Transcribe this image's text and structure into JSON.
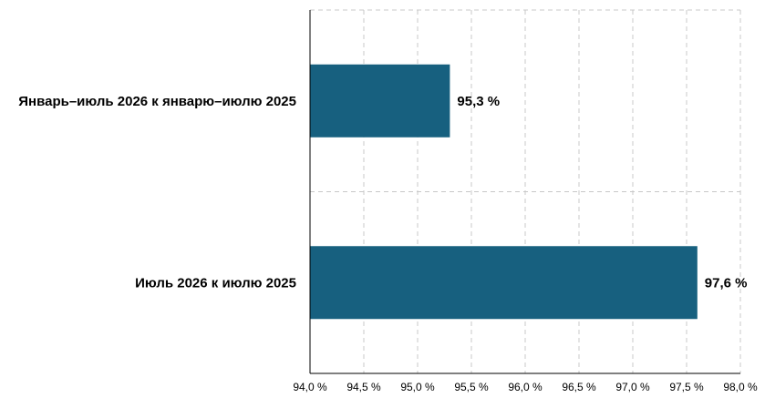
{
  "chart_data": {
    "type": "bar",
    "orientation": "horizontal",
    "categories": [
      "Январь–июль 2026 к январю–июлю 2025",
      "Июль 2026 к июлю 2025"
    ],
    "values": [
      95.3,
      97.6
    ],
    "value_labels": [
      "95,3 %",
      "97,6 %"
    ],
    "xlim": [
      94.0,
      98.0
    ],
    "x_ticks": [
      94.0,
      94.5,
      95.0,
      95.5,
      96.0,
      96.5,
      97.0,
      97.5,
      98.0
    ],
    "x_tick_labels": [
      "94,0 %",
      "94,5 %",
      "95,0 %",
      "95,5 %",
      "96,0 %",
      "96,5 %",
      "97,0 %",
      "97,5 %",
      "98,0 %"
    ],
    "grid": true,
    "bar_color": "#17607F",
    "title": "",
    "xlabel": "",
    "ylabel": ""
  }
}
